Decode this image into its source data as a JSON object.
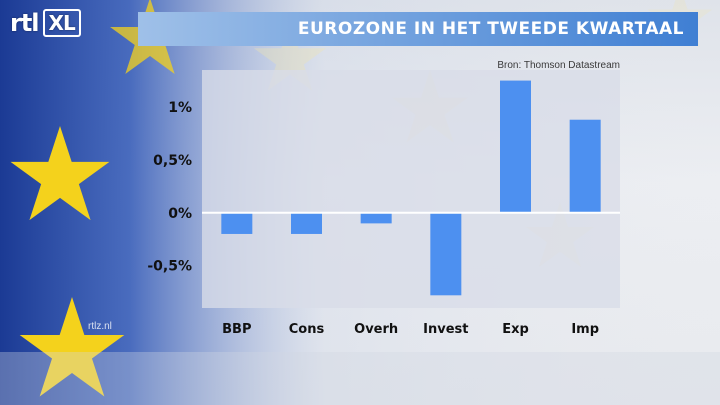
{
  "header": {
    "logo_text": "rtl",
    "logo_badge": "XL",
    "title": "EUROZONE IN HET TWEEDE KWARTAAL"
  },
  "source": "Bron: Thomson Datastream",
  "watermark": "rtlz.nl",
  "colors": {
    "bar": "#4d90f0",
    "title_bar": "#3f7fd3",
    "flag_blue": "#1d3f9a",
    "star": "#f4d21c"
  },
  "chart_data": {
    "type": "bar",
    "title": "EUROZONE IN HET TWEEDE KWARTAAL",
    "categories": [
      "BBP",
      "Cons",
      "Overh",
      "Invest",
      "Exp",
      "Imp"
    ],
    "values": [
      -0.2,
      -0.2,
      -0.1,
      -0.78,
      1.25,
      0.88
    ],
    "unit": "%",
    "yticks": [
      "1%",
      "0,5%",
      "0%",
      "-0,5%"
    ],
    "ytick_values": [
      1,
      0.5,
      0,
      -0.5
    ],
    "ylim": [
      -0.9,
      1.35
    ],
    "xlabel": "",
    "ylabel": "",
    "grid": false,
    "legend": "none"
  }
}
